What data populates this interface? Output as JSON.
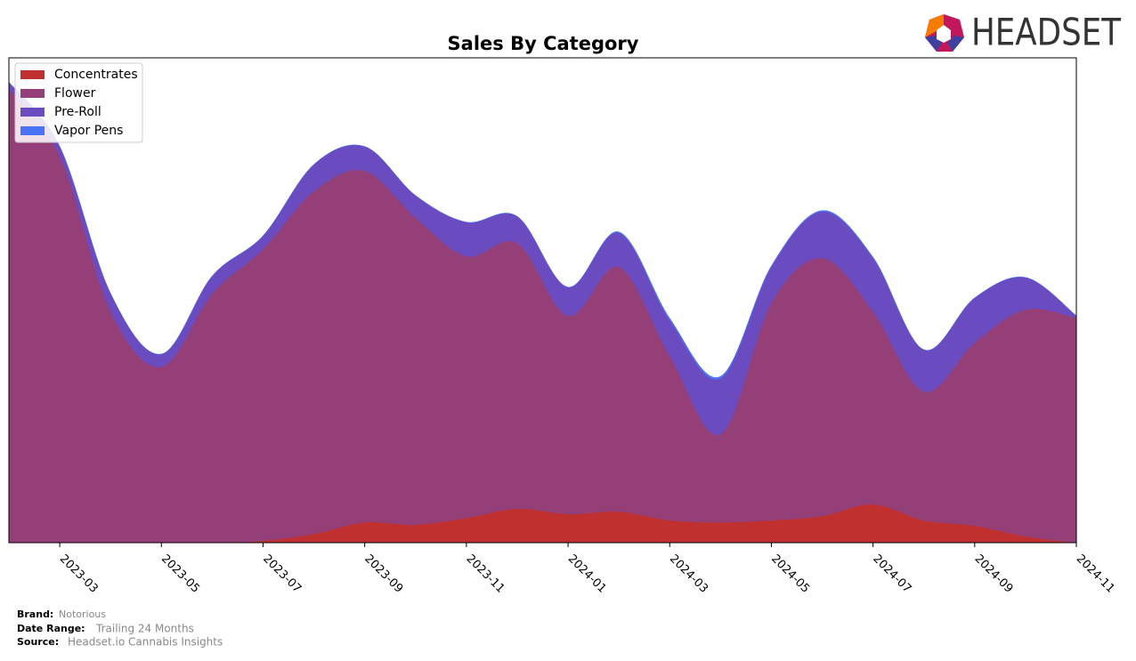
{
  "logo": "HEADSET",
  "chart_data": {
    "type": "stacked-area",
    "title": "Sales By Category",
    "x": [
      "2023-02",
      "2023-03",
      "2023-04",
      "2023-05",
      "2023-06",
      "2023-07",
      "2023-08",
      "2023-09",
      "2023-10",
      "2023-11",
      "2023-12",
      "2024-01",
      "2024-02",
      "2024-03",
      "2024-04",
      "2024-05",
      "2024-06",
      "2024-07",
      "2024-08",
      "2024-09",
      "2024-10",
      "2024-11"
    ],
    "xticks": [
      "2023-03",
      "2023-05",
      "2023-07",
      "2023-09",
      "2023-11",
      "2024-01",
      "2024-03",
      "2024-05",
      "2024-07",
      "2024-09",
      "2024-11"
    ],
    "ylim": [
      0,
      100
    ],
    "legend": "upper left",
    "series": [
      {
        "name": "Concentrates",
        "color": "#c0302f",
        "values": [
          0,
          0,
          0,
          0,
          0,
          0.4,
          1.8,
          4.2,
          3.7,
          5.1,
          7.0,
          5.9,
          6.4,
          4.6,
          4.2,
          4.6,
          5.5,
          7.9,
          4.6,
          3.5,
          1.3,
          0
        ]
      },
      {
        "name": "Flower",
        "color": "#943f77",
        "values": [
          93.6,
          79.8,
          47.7,
          36.3,
          51.4,
          60.2,
          70.7,
          72.5,
          63.3,
          54.0,
          54.8,
          40.9,
          50.5,
          33.9,
          18.2,
          44.9,
          53.2,
          39.8,
          26.6,
          37.8,
          46.8,
          46.4
        ]
      },
      {
        "name": "Pre-Roll",
        "color": "#6a4cc0",
        "values": [
          1.4,
          1.9,
          3.7,
          2.6,
          3.6,
          2.7,
          5.5,
          5.0,
          4.6,
          7.0,
          5.5,
          5.9,
          7.0,
          7.4,
          11.5,
          7.4,
          9.6,
          11.0,
          8.6,
          9.2,
          6.6,
          0.4
        ]
      },
      {
        "name": "Vapor Pens",
        "color": "#4a72f5",
        "values": [
          0,
          0,
          0,
          0,
          0,
          0,
          0,
          0,
          0,
          0,
          0,
          0,
          0.2,
          0.4,
          0.4,
          0.2,
          0.2,
          0.2,
          0,
          0,
          0,
          0
        ]
      }
    ],
    "footer": {
      "brand_label": "Brand:",
      "brand": "Notorious",
      "range_label": "Date Range:",
      "range": "Trailing 24 Months",
      "source_label": "Source:",
      "source": "Headset.io Cannabis Insights"
    }
  }
}
